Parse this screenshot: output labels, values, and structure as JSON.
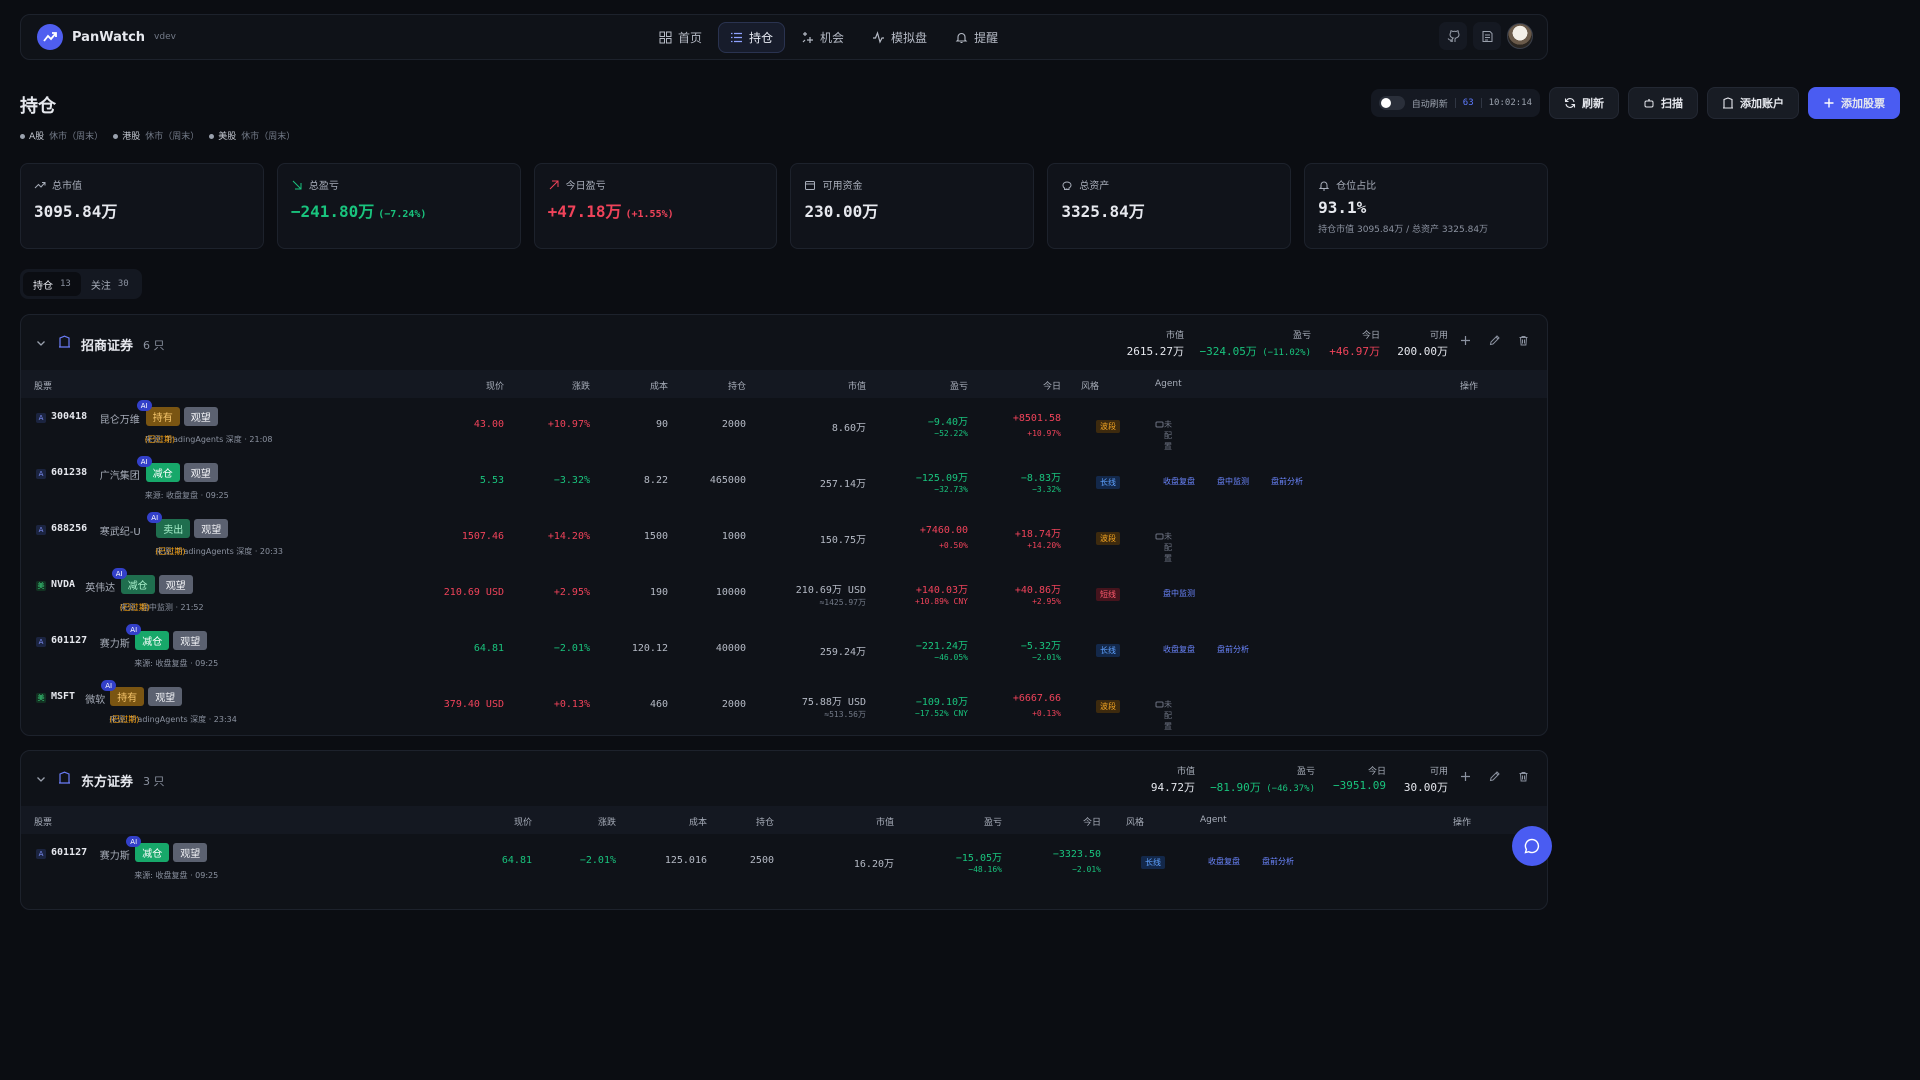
{
  "app": {
    "name": "PanWatch",
    "version": "vdev"
  },
  "nav": [
    {
      "label": "首页",
      "icon": "grid-icon"
    },
    {
      "label": "持仓",
      "icon": "list-icon",
      "active": true
    },
    {
      "label": "机会",
      "icon": "sparkle-icon"
    },
    {
      "label": "模拟盘",
      "icon": "pulse-icon"
    },
    {
      "label": "提醒",
      "icon": "bell-icon"
    }
  ],
  "page": {
    "title": "持仓"
  },
  "markets": [
    {
      "name": "A股",
      "status": "休市（周末）"
    },
    {
      "name": "港股",
      "status": "休市（周末）"
    },
    {
      "name": "美股",
      "status": "休市（周末）"
    }
  ],
  "toolbar": {
    "auto_refresh_label": "自动刷新",
    "auto_refresh_on": false,
    "countdown": "63",
    "time": "10:02:14",
    "refresh": "刷新",
    "scan": "扫描",
    "add_account": "添加账户",
    "add_stock": "添加股票"
  },
  "summary": [
    {
      "label": "总市值",
      "value": "3095.84万",
      "pct": "",
      "color": "#e6e8ee",
      "icon": "trend-up-icon"
    },
    {
      "label": "总盈亏",
      "value": "−241.80万",
      "pct": "(−7.24%)",
      "color": "#19c37d",
      "icon": "arrow-down-right-icon"
    },
    {
      "label": "今日盈亏",
      "value": "+47.18万",
      "pct": "(+1.55%)",
      "color": "#f0435a",
      "icon": "arrow-up-right-icon"
    },
    {
      "label": "可用资金",
      "value": "230.00万",
      "pct": "",
      "color": "#e6e8ee",
      "icon": "wallet-icon"
    },
    {
      "label": "总资产",
      "value": "3325.84万",
      "pct": "",
      "color": "#e6e8ee",
      "icon": "piggy-bank-icon"
    },
    {
      "label": "仓位占比",
      "value": "93.1%",
      "pct": "",
      "note": "持仓市值 3095.84万 / 总资产 3325.84万",
      "color": "#e6e8ee",
      "icon": "bell-icon"
    }
  ],
  "tabs": [
    {
      "label": "持仓",
      "count": "13",
      "active": true
    },
    {
      "label": "关注",
      "count": "30"
    }
  ],
  "columns": {
    "stock": "股票",
    "price": "现价",
    "change": "涨跌",
    "cost": "成本",
    "qty": "持仓",
    "mv": "市值",
    "pnl": "盈亏",
    "today": "今日",
    "style": "风格",
    "agent": "Agent",
    "ops": "操作"
  },
  "accounts": [
    {
      "name": "招商证券",
      "count": "6 只",
      "market_value_label": "市值",
      "market_value": "2615.27万",
      "pnl_label": "盈亏",
      "pnl": "−324.05万",
      "pnl_pct": "(−11.02%)",
      "today_label": "今日",
      "today": "+46.97万",
      "avail_label": "可用",
      "avail": "200.00万",
      "rows": [
        {
          "mk": "A",
          "code": "300418",
          "name": "昆仑万维",
          "tag": "持有",
          "tag_cls": "hold",
          "watch": "观望",
          "ai": "AI",
          "source": "来源: TradingAgents 深度 · 21:08",
          "expired": "(已过期)",
          "price": "43.00",
          "price_color": "#f0435a",
          "change": "+10.97%",
          "change_color": "#f0435a",
          "cost": "90",
          "qty": "2000",
          "mv": "8.60万",
          "mv2": "",
          "pnl": "−9.40万",
          "pnl2": "−52.22%",
          "pnl_color": "#19c37d",
          "today": "+8501.58",
          "today2": "+10.97%",
          "today_color": "#f0435a",
          "style": "波段",
          "style_cls": "swing",
          "agents": [],
          "unset": "未配置"
        },
        {
          "mk": "A",
          "code": "601238",
          "name": "广汽集团",
          "tag": "减仓",
          "tag_cls": "reduce",
          "watch": "观望",
          "ai": "AI",
          "source": "来源: 收盘复盘 · 09:25",
          "expired": "",
          "price": "5.53",
          "price_color": "#19c37d",
          "change": "−3.32%",
          "change_color": "#19c37d",
          "cost": "8.22",
          "qty": "465000",
          "mv": "257.14万",
          "mv2": "",
          "pnl": "−125.09万",
          "pnl2": "−32.73%",
          "pnl_color": "#19c37d",
          "today": "−8.83万",
          "today2": "−3.32%",
          "today_color": "#19c37d",
          "style": "长线",
          "style_cls": "long",
          "agents": [
            "收盘复盘",
            "盘中监测",
            "盘前分析"
          ],
          "unset": ""
        },
        {
          "mk": "A",
          "code": "688256",
          "name": "寒武纪-U",
          "tag": "卖出",
          "tag_cls": "sell",
          "watch": "观望",
          "ai": "AI",
          "source": "来源: TradingAgents 深度 · 20:33",
          "expired": "(已过期)",
          "price": "1507.46",
          "price_color": "#f0435a",
          "change": "+14.20%",
          "change_color": "#f0435a",
          "cost": "1500",
          "qty": "1000",
          "mv": "150.75万",
          "mv2": "",
          "pnl": "+7460.00",
          "pnl2": "+0.50%",
          "pnl_color": "#f0435a",
          "today": "+18.74万",
          "today2": "+14.20%",
          "today_color": "#f0435a",
          "style": "波段",
          "style_cls": "swing",
          "agents": [],
          "unset": "未配置"
        },
        {
          "mk": "美",
          "code": "NVDA",
          "name": "英伟达",
          "tag": "减仓",
          "tag_cls": "sell",
          "watch": "观望",
          "ai": "AI",
          "source": "来源: 盘中监测 · 21:52",
          "expired": "(已过期)",
          "price": "210.69 USD",
          "price_color": "#f0435a",
          "change": "+2.95%",
          "change_color": "#f0435a",
          "cost": "190",
          "qty": "10000",
          "mv": "210.69万 USD",
          "mv2": "≈1425.97万",
          "pnl": "+140.03万",
          "pnl2": "+10.89% CNY",
          "pnl_color": "#f0435a",
          "today": "+40.86万",
          "today2": "+2.95%",
          "today_color": "#f0435a",
          "style": "短线",
          "style_cls": "short",
          "agents": [
            "盘中监测"
          ],
          "unset": ""
        },
        {
          "mk": "A",
          "code": "601127",
          "name": "赛力斯",
          "tag": "减仓",
          "tag_cls": "reduce",
          "watch": "观望",
          "ai": "AI",
          "source": "来源: 收盘复盘 · 09:25",
          "expired": "",
          "price": "64.81",
          "price_color": "#19c37d",
          "change": "−2.01%",
          "change_color": "#19c37d",
          "cost": "120.12",
          "qty": "40000",
          "mv": "259.24万",
          "mv2": "",
          "pnl": "−221.24万",
          "pnl2": "−46.05%",
          "pnl_color": "#19c37d",
          "today": "−5.32万",
          "today2": "−2.01%",
          "today_color": "#19c37d",
          "style": "长线",
          "style_cls": "long",
          "agents": [
            "收盘复盘",
            "盘前分析"
          ],
          "unset": ""
        },
        {
          "mk": "美",
          "code": "MSFT",
          "name": "微软",
          "tag": "持有",
          "tag_cls": "hold",
          "watch": "观望",
          "ai": "AI",
          "source": "来源: TradingAgents 深度 · 23:34",
          "expired": "(已过期)",
          "price": "379.40 USD",
          "price_color": "#f0435a",
          "change": "+0.13%",
          "change_color": "#f0435a",
          "cost": "460",
          "qty": "2000",
          "mv": "75.88万 USD",
          "mv2": "≈513.56万",
          "pnl": "−109.10万",
          "pnl2": "−17.52% CNY",
          "pnl_color": "#19c37d",
          "today": "+6667.66",
          "today2": "+0.13%",
          "today_color": "#f0435a",
          "style": "波段",
          "style_cls": "swing",
          "agents": [],
          "unset": "未配置"
        }
      ]
    },
    {
      "name": "东方证券",
      "count": "3 只",
      "market_value_label": "市值",
      "market_value": "94.72万",
      "pnl_label": "盈亏",
      "pnl": "−81.90万",
      "pnl_pct": "(−46.37%)",
      "today_label": "今日",
      "today": "−3951.09",
      "avail_label": "可用",
      "avail": "30.00万",
      "rows": [
        {
          "mk": "A",
          "code": "601127",
          "name": "赛力斯",
          "tag": "减仓",
          "tag_cls": "reduce",
          "watch": "观望",
          "ai": "AI",
          "source": "来源: 收盘复盘 · 09:25",
          "expired": "",
          "price": "64.81",
          "price_color": "#19c37d",
          "change": "−2.01%",
          "change_color": "#19c37d",
          "cost": "125.016",
          "qty": "2500",
          "mv": "16.20万",
          "mv2": "",
          "pnl": "−15.05万",
          "pnl2": "−48.16%",
          "pnl_color": "#19c37d",
          "today": "−3323.50",
          "today2": "−2.01%",
          "today_color": "#19c37d",
          "style": "长线",
          "style_cls": "long",
          "agents": [
            "收盘复盘",
            "盘前分析"
          ],
          "unset": ""
        }
      ]
    }
  ]
}
